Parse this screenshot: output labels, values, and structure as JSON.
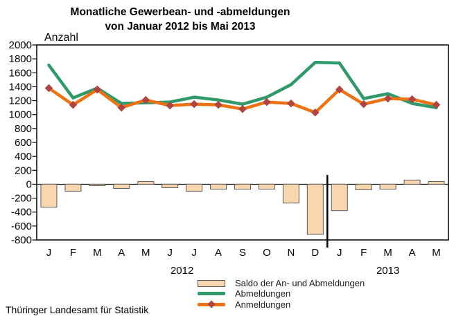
{
  "title": {
    "line1": "Monatliche Gewerbean- und -abmeldungen",
    "line2": "von Januar 2012 bis Mai 2013"
  },
  "footer": {
    "source": "Thüringer Landesamt für Statistik"
  },
  "legend": {
    "items": [
      {
        "label": "Saldo der An- und Abmeldungen",
        "swatch": "bar"
      },
      {
        "label": "Abmeldungen",
        "swatch": "line"
      },
      {
        "label": "Anmeldungen",
        "swatch": "line-with-marker"
      }
    ]
  },
  "colors": {
    "saldo_fill": "#f9d7ae",
    "saldo_border": "#5a5a5a",
    "abmeldungen_line": "#2f9969",
    "anmeldungen_line": "#ee7211",
    "anmeldungen_marker": "#b0443f",
    "axis": "#000000",
    "background": "#ffffff"
  },
  "chart_data": {
    "type": "combo-bar-line",
    "title": "Monatliche Gewerbean- und -abmeldungen von Januar 2012 bis Mai 2013",
    "ylabel": "Anzahl",
    "xlabel": "",
    "ylim": [
      -800,
      2000
    ],
    "yticks": [
      2000,
      1800,
      1600,
      1400,
      1200,
      1000,
      800,
      600,
      400,
      200,
      0,
      -200,
      -400,
      -600,
      -800
    ],
    "categories": [
      "J",
      "F",
      "M",
      "A",
      "M",
      "J",
      "J",
      "A",
      "S",
      "O",
      "N",
      "D",
      "J",
      "F",
      "M",
      "A",
      "M"
    ],
    "year_groups": [
      {
        "label": "2012",
        "from_index": 0,
        "to_index": 11
      },
      {
        "label": "2013",
        "from_index": 12,
        "to_index": 16
      }
    ],
    "divider_after_index": 11,
    "grid": false,
    "legend_position": "bottom-center",
    "series": [
      {
        "name": "Saldo der An- und Abmeldungen",
        "type": "bar",
        "values": [
          -330,
          -100,
          -20,
          -60,
          40,
          -50,
          -100,
          -70,
          -70,
          -70,
          -270,
          -720,
          -380,
          -80,
          -70,
          60,
          40
        ]
      },
      {
        "name": "Abmeldungen",
        "type": "line",
        "values": [
          1710,
          1240,
          1380,
          1160,
          1170,
          1180,
          1250,
          1210,
          1150,
          1250,
          1430,
          1750,
          1740,
          1230,
          1300,
          1160,
          1100
        ]
      },
      {
        "name": "Anmeldungen",
        "type": "line-with-markers",
        "values": [
          1380,
          1140,
          1360,
          1100,
          1210,
          1130,
          1150,
          1140,
          1080,
          1180,
          1160,
          1030,
          1360,
          1150,
          1230,
          1220,
          1140
        ]
      }
    ]
  }
}
